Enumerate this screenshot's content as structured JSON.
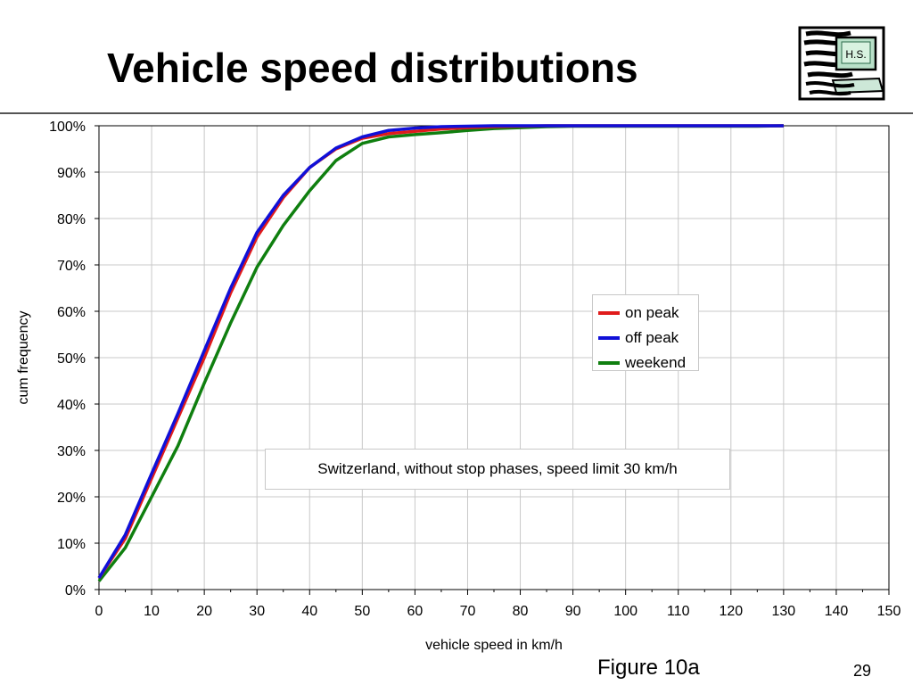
{
  "slide": {
    "title": "Vehicle speed distributions",
    "logo_text": "H.S.",
    "figure_label": "Figure 10a",
    "page_number": "29"
  },
  "colors": {
    "on_peak": "#e01b1b",
    "off_peak": "#1010d8",
    "weekend": "#0f7f0f",
    "grid": "#c8c8c8",
    "axis": "#000000"
  },
  "chart_data": {
    "type": "line",
    "title": "",
    "xlabel": "vehicle speed in km/h",
    "ylabel": "cum frequency",
    "xlim": [
      0,
      150
    ],
    "ylim": [
      0,
      100
    ],
    "x_ticks": [
      0,
      10,
      20,
      30,
      40,
      50,
      60,
      70,
      80,
      90,
      100,
      110,
      120,
      130,
      140,
      150
    ],
    "y_ticks": [
      0,
      10,
      20,
      30,
      40,
      50,
      60,
      70,
      80,
      90,
      100
    ],
    "y_tick_labels": [
      "0%",
      "10%",
      "20%",
      "30%",
      "40%",
      "50%",
      "60%",
      "70%",
      "80%",
      "90%",
      "100%"
    ],
    "grid": true,
    "legend_position": "right",
    "x": [
      0,
      5,
      10,
      15,
      20,
      25,
      30,
      35,
      40,
      45,
      50,
      55,
      60,
      65,
      70,
      75,
      80,
      85,
      90,
      95,
      100,
      105,
      110,
      115,
      120,
      125,
      130
    ],
    "series": [
      {
        "name": "on peak",
        "values": [
          2.5,
          11,
          24,
          37,
          50,
          64,
          76,
          84.5,
          91,
          95,
          97.3,
          98.3,
          98.8,
          99.3,
          99.6,
          99.8,
          99.9,
          100,
          100,
          100,
          100,
          100,
          100,
          100,
          100,
          100,
          100
        ]
      },
      {
        "name": "off peak",
        "values": [
          2.5,
          11.8,
          25,
          38,
          51.5,
          65,
          77,
          85,
          91,
          95.2,
          97.6,
          99,
          99.5,
          99.8,
          99.9,
          100,
          100,
          100,
          100,
          100,
          100,
          100,
          100,
          100,
          100,
          100,
          100
        ]
      },
      {
        "name": "weekend",
        "values": [
          1.8,
          9,
          20,
          31,
          44.5,
          57.5,
          69.5,
          78.5,
          86,
          92.5,
          96.2,
          97.6,
          98.1,
          98.5,
          99,
          99.4,
          99.6,
          99.8,
          99.9,
          99.9,
          99.9,
          99.9,
          99.9,
          99.9,
          99.9,
          99.9,
          100
        ]
      }
    ],
    "annotation": "Switzerland, without stop phases, speed limit 30 km/h"
  }
}
